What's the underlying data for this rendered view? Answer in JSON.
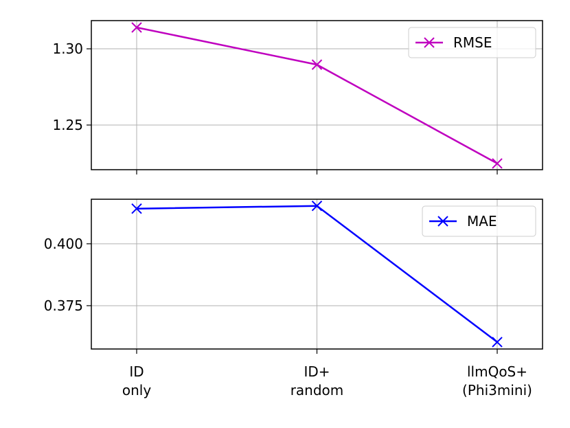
{
  "chart_data": [
    {
      "type": "line",
      "series": [
        {
          "name": "RMSE",
          "color": "#bf00bf",
          "values": [
            1.314,
            1.2896,
            1.2248
          ]
        }
      ],
      "ylim": [
        1.2207,
        1.3185
      ],
      "yticks": [
        {
          "value": 1.3,
          "label": "1.30"
        },
        1.25
      ],
      "grid": true,
      "legend": "upper right"
    },
    {
      "type": "line",
      "categories": [
        [
          "ID",
          "only"
        ],
        [
          "ID+",
          "random"
        ],
        [
          "llmQoS+",
          "(Phi3mini)"
        ]
      ],
      "series": [
        {
          "name": "MAE",
          "color": "#0000ff",
          "values": [
            0.4142,
            0.4153,
            0.3603
          ]
        }
      ],
      "ylim": [
        0.3575,
        0.418
      ],
      "yticks": [
        {
          "value": 0.4,
          "label": "0.400"
        },
        0.375
      ],
      "grid": true,
      "legend": "upper right"
    }
  ]
}
